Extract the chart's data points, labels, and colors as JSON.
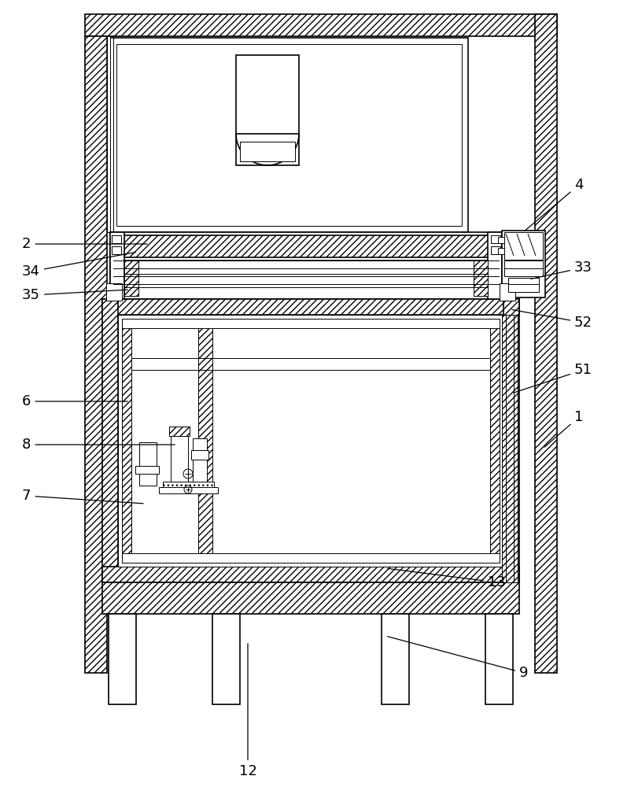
{
  "fig_width": 7.97,
  "fig_height": 10.0,
  "dpi": 100,
  "bg": "#ffffff",
  "lc": "#000000",
  "lw_thin": 0.7,
  "lw_med": 1.2,
  "lw_thick": 1.8,
  "label_fs": 13
}
